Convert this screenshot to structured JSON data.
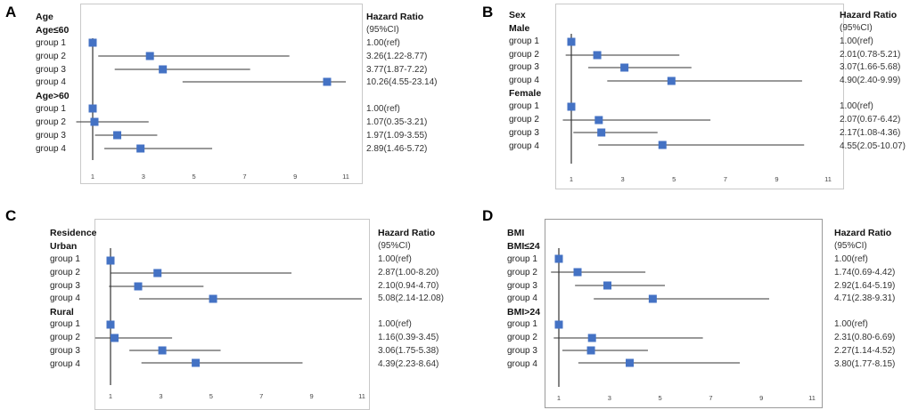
{
  "colors": {
    "marker": "#4472C4",
    "line": "#333333"
  },
  "chart_data": [
    {
      "type": "forest",
      "panel": "A",
      "title": "Age",
      "hr_header": "Hazard Ratio",
      "hr_subheader": "(95%CI)",
      "xticks": [
        1,
        3,
        5,
        7,
        9,
        11
      ],
      "xlim": [
        1,
        11
      ],
      "groups": [
        {
          "label": "Age≤60",
          "rows": [
            {
              "name": "group 1",
              "hr": 1.0,
              "lo": 1.0,
              "hi": 1.0,
              "text": "1.00(ref)"
            },
            {
              "name": "group 2",
              "hr": 3.26,
              "lo": 1.22,
              "hi": 8.77,
              "text": "3.26(1.22-8.77)"
            },
            {
              "name": "group 3",
              "hr": 3.77,
              "lo": 1.87,
              "hi": 7.22,
              "text": "3.77(1.87-7.22)"
            },
            {
              "name": "group 4",
              "hr": 10.26,
              "lo": 4.55,
              "hi": 23.14,
              "text": "10.26(4.55-23.14)"
            }
          ]
        },
        {
          "label": "Age>60",
          "rows": [
            {
              "name": "group 1",
              "hr": 1.0,
              "lo": 1.0,
              "hi": 1.0,
              "text": "1.00(ref)"
            },
            {
              "name": "group 2",
              "hr": 1.07,
              "lo": 0.35,
              "hi": 3.21,
              "text": "1.07(0.35-3.21)"
            },
            {
              "name": "group 3",
              "hr": 1.97,
              "lo": 1.09,
              "hi": 3.55,
              "text": "1.97(1.09-3.55)"
            },
            {
              "name": "group 4",
              "hr": 2.89,
              "lo": 1.46,
              "hi": 5.72,
              "text": "2.89(1.46-5.72)"
            }
          ]
        }
      ]
    },
    {
      "type": "forest",
      "panel": "B",
      "title": "Sex",
      "hr_header": "Hazard Ratio",
      "hr_subheader": "(95%CI)",
      "xticks": [
        1,
        3,
        5,
        7,
        9,
        11
      ],
      "xlim": [
        1,
        11
      ],
      "groups": [
        {
          "label": "Male",
          "rows": [
            {
              "name": "group 1",
              "hr": 1.0,
              "lo": 1.0,
              "hi": 1.0,
              "text": "1.00(ref)"
            },
            {
              "name": "group 2",
              "hr": 2.01,
              "lo": 0.78,
              "hi": 5.21,
              "text": "2.01(0.78-5.21)"
            },
            {
              "name": "group 3",
              "hr": 3.07,
              "lo": 1.66,
              "hi": 5.68,
              "text": "3.07(1.66-5.68)"
            },
            {
              "name": "group 4",
              "hr": 4.9,
              "lo": 2.4,
              "hi": 9.99,
              "text": "4.90(2.40-9.99)"
            }
          ]
        },
        {
          "label": "Female",
          "rows": [
            {
              "name": "group 1",
              "hr": 1.0,
              "lo": 1.0,
              "hi": 1.0,
              "text": "1.00(ref)"
            },
            {
              "name": "group 2",
              "hr": 2.07,
              "lo": 0.67,
              "hi": 6.42,
              "text": "2.07(0.67-6.42)"
            },
            {
              "name": "group 3",
              "hr": 2.17,
              "lo": 1.08,
              "hi": 4.36,
              "text": "2.17(1.08-4.36)"
            },
            {
              "name": "group 4",
              "hr": 4.55,
              "lo": 2.05,
              "hi": 10.07,
              "text": "4.55(2.05-10.07)"
            }
          ]
        }
      ]
    },
    {
      "type": "forest",
      "panel": "C",
      "title": "Residence",
      "hr_header": "Hazard Ratio",
      "hr_subheader": "(95%CI)",
      "xticks": [
        1,
        3,
        5,
        7,
        9,
        11
      ],
      "xlim": [
        1,
        11
      ],
      "groups": [
        {
          "label": "Urban",
          "rows": [
            {
              "name": "group 1",
              "hr": 1.0,
              "lo": 1.0,
              "hi": 1.0,
              "text": "1.00(ref)"
            },
            {
              "name": "group 2",
              "hr": 2.87,
              "lo": 1.0,
              "hi": 8.2,
              "text": "2.87(1.00-8.20)"
            },
            {
              "name": "group 3",
              "hr": 2.1,
              "lo": 0.94,
              "hi": 4.7,
              "text": "2.10(0.94-4.70)"
            },
            {
              "name": "group 4",
              "hr": 5.08,
              "lo": 2.14,
              "hi": 12.08,
              "text": "5.08(2.14-12.08)"
            }
          ]
        },
        {
          "label": "Rural",
          "rows": [
            {
              "name": "group 1",
              "hr": 1.0,
              "lo": 1.0,
              "hi": 1.0,
              "text": "1.00(ref)"
            },
            {
              "name": "group 2",
              "hr": 1.16,
              "lo": 0.39,
              "hi": 3.45,
              "text": "1.16(0.39-3.45)"
            },
            {
              "name": "group 3",
              "hr": 3.06,
              "lo": 1.75,
              "hi": 5.38,
              "text": "3.06(1.75-5.38)"
            },
            {
              "name": "group 4",
              "hr": 4.39,
              "lo": 2.23,
              "hi": 8.64,
              "text": "4.39(2.23-8.64)"
            }
          ]
        }
      ]
    },
    {
      "type": "forest",
      "panel": "D",
      "title": "BMI",
      "hr_header": "Hazard Ratio",
      "hr_subheader": "(95%CI)",
      "xticks": [
        1,
        3,
        5,
        7,
        9,
        11
      ],
      "xlim": [
        1,
        11
      ],
      "groups": [
        {
          "label": "BMI≤24",
          "rows": [
            {
              "name": "group 1",
              "hr": 1.0,
              "lo": 1.0,
              "hi": 1.0,
              "text": "1.00(ref)"
            },
            {
              "name": "group 2",
              "hr": 1.74,
              "lo": 0.69,
              "hi": 4.42,
              "text": "1.74(0.69-4.42)"
            },
            {
              "name": "group 3",
              "hr": 2.92,
              "lo": 1.64,
              "hi": 5.19,
              "text": "2.92(1.64-5.19)"
            },
            {
              "name": "group 4",
              "hr": 4.71,
              "lo": 2.38,
              "hi": 9.31,
              "text": "4.71(2.38-9.31)"
            }
          ]
        },
        {
          "label": "BMI>24",
          "rows": [
            {
              "name": "group 1",
              "hr": 1.0,
              "lo": 1.0,
              "hi": 1.0,
              "text": "1.00(ref)"
            },
            {
              "name": "group 2",
              "hr": 2.31,
              "lo": 0.8,
              "hi": 6.69,
              "text": "2.31(0.80-6.69)"
            },
            {
              "name": "group 3",
              "hr": 2.27,
              "lo": 1.14,
              "hi": 4.52,
              "text": "2.27(1.14-4.52)"
            },
            {
              "name": "group 4",
              "hr": 3.8,
              "lo": 1.77,
              "hi": 8.15,
              "text": "3.80(1.77-8.15)"
            }
          ]
        }
      ]
    }
  ]
}
